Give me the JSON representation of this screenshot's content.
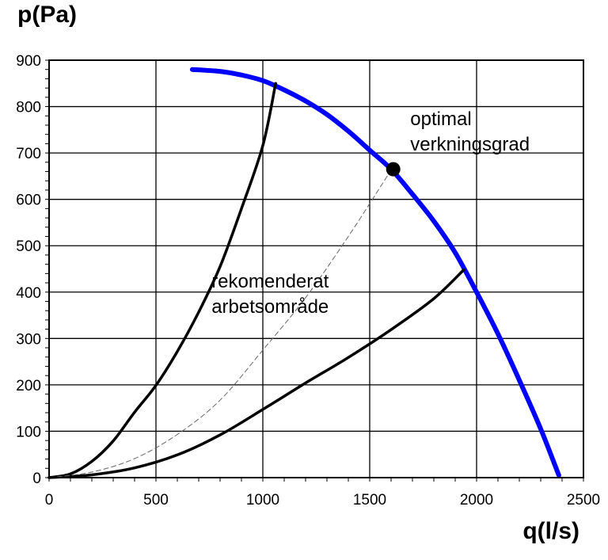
{
  "chart_data": {
    "type": "line",
    "title": "",
    "xlabel": "q(l/s)",
    "ylabel": "p(Pa)",
    "xlim": [
      0,
      2500
    ],
    "ylim": [
      0,
      900
    ],
    "x_ticks": [
      "0",
      "500",
      "1000",
      "1500",
      "2000",
      "2500"
    ],
    "y_ticks": [
      "0",
      "100",
      "200",
      "300",
      "400",
      "500",
      "600",
      "700",
      "800",
      "900"
    ],
    "grid": true,
    "series": [
      {
        "color": "#0000ff",
        "points": [
          [
            670,
            880
          ],
          [
            800,
            876
          ],
          [
            900,
            868
          ],
          [
            1000,
            856
          ],
          [
            1100,
            836
          ],
          [
            1200,
            812
          ],
          [
            1300,
            783
          ],
          [
            1400,
            747
          ],
          [
            1500,
            706
          ],
          [
            1600,
            665
          ],
          [
            1700,
            611
          ],
          [
            1800,
            553
          ],
          [
            1900,
            485
          ],
          [
            2000,
            400
          ],
          [
            2100,
            310
          ],
          [
            2200,
            210
          ],
          [
            2300,
            105
          ],
          [
            2385,
            5
          ]
        ]
      },
      {
        "color": "#000000",
        "points": [
          [
            0,
            0
          ],
          [
            100,
            8
          ],
          [
            200,
            35
          ],
          [
            300,
            79
          ],
          [
            400,
            141
          ],
          [
            500,
            199
          ],
          [
            600,
            272
          ],
          [
            700,
            357
          ],
          [
            800,
            455
          ],
          [
            900,
            580
          ],
          [
            1000,
            716
          ],
          [
            1060,
            850
          ]
        ]
      },
      {
        "color": "#000000",
        "points": [
          [
            0,
            0
          ],
          [
            200,
            6
          ],
          [
            400,
            21
          ],
          [
            600,
            49
          ],
          [
            800,
            92
          ],
          [
            1000,
            147
          ],
          [
            1200,
            204
          ],
          [
            1400,
            259
          ],
          [
            1600,
            319
          ],
          [
            1800,
            386
          ],
          [
            1940,
            448
          ]
        ]
      },
      {
        "color": "#666666",
        "dashed": true,
        "points": [
          [
            0,
            0
          ],
          [
            200,
            12
          ],
          [
            400,
            41
          ],
          [
            600,
            93
          ],
          [
            800,
            167
          ],
          [
            1000,
            275
          ],
          [
            1200,
            388
          ],
          [
            1400,
            520
          ],
          [
            1600,
            663
          ]
        ]
      }
    ],
    "annotations": [
      {
        "text": "optimal",
        "x": 1690,
        "y": 760
      },
      {
        "text": "verkningsgrad",
        "x": 1690,
        "y": 705
      },
      {
        "text": "rekomenderat",
        "x": 760,
        "y": 410
      },
      {
        "text": "arbetsområde",
        "x": 760,
        "y": 355
      }
    ],
    "markers": [
      {
        "x": 1610,
        "y": 665,
        "color": "#000000"
      }
    ]
  }
}
